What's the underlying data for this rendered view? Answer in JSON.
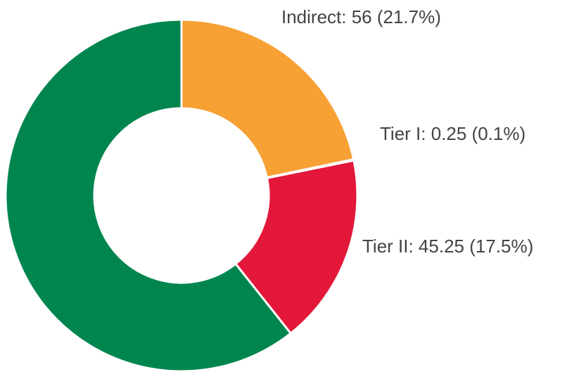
{
  "chart_data": {
    "type": "donut",
    "values": [
      56,
      0.25,
      45.25,
      156.5
    ],
    "value_labels": [
      "Indirect: 56 (21.7%)",
      "Tier I: 0.25 (0.1%)",
      "Tier II: 45.25 (17.5%)",
      null
    ],
    "colors": [
      "#f7a034",
      "#f7a034",
      "#e3173a",
      "#00854f"
    ]
  }
}
